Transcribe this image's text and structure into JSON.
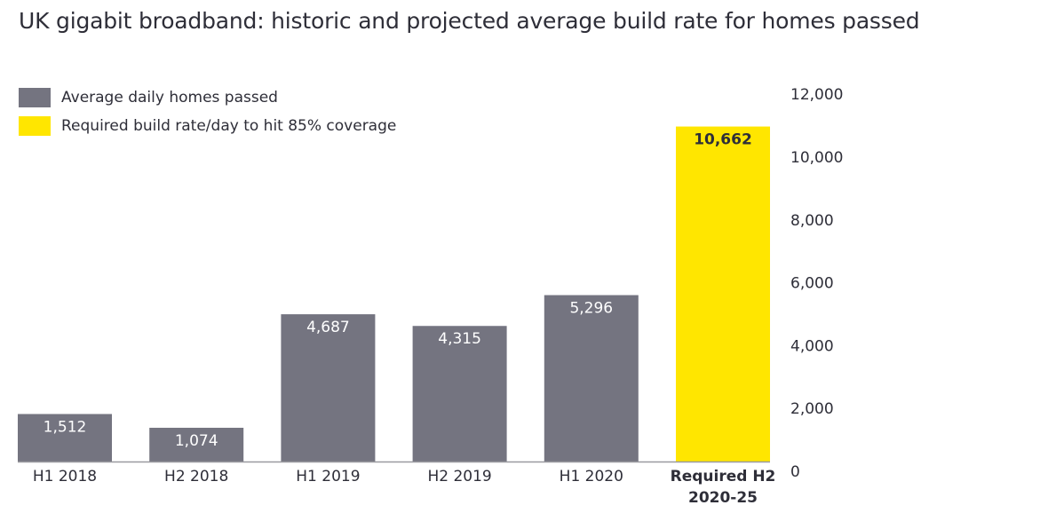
{
  "chart_data": {
    "type": "bar",
    "title": "UK gigabit broadband: historic and projected average build rate for homes passed",
    "xlabel": "",
    "ylabel": "",
    "ylim": [
      0,
      12000
    ],
    "yticks": [
      0,
      2000,
      4000,
      6000,
      8000,
      10000,
      12000
    ],
    "ytick_labels": [
      "0",
      "2,000",
      "4,000",
      "6,000",
      "8,000",
      "10,000",
      "12,000"
    ],
    "y_axis_position": "right",
    "grid": false,
    "legend_position": "top-left",
    "legend": [
      {
        "label": "Average daily homes passed",
        "color": "#747480"
      },
      {
        "label": "Required build rate/day to hit 85% coverage",
        "color": "#ffe600"
      }
    ],
    "categories": [
      [
        "H1 2018"
      ],
      [
        "H2 2018"
      ],
      [
        "H1 2019"
      ],
      [
        "H2 2019"
      ],
      [
        "H1 2020"
      ],
      [
        "Required H2",
        "2020-25"
      ]
    ],
    "values": [
      1512,
      1074,
      4687,
      4315,
      5296,
      10662
    ],
    "data_labels": [
      "1,512",
      "1,074",
      "4,687",
      "4,315",
      "5,296",
      "10,662"
    ],
    "series_index": [
      0,
      0,
      0,
      0,
      0,
      1
    ],
    "colors": {
      "historic": "#747480",
      "required": "#ffe600",
      "historic_label": "#ffffff",
      "required_label": "#2e2e38",
      "axis": "#9a9aa0"
    }
  }
}
